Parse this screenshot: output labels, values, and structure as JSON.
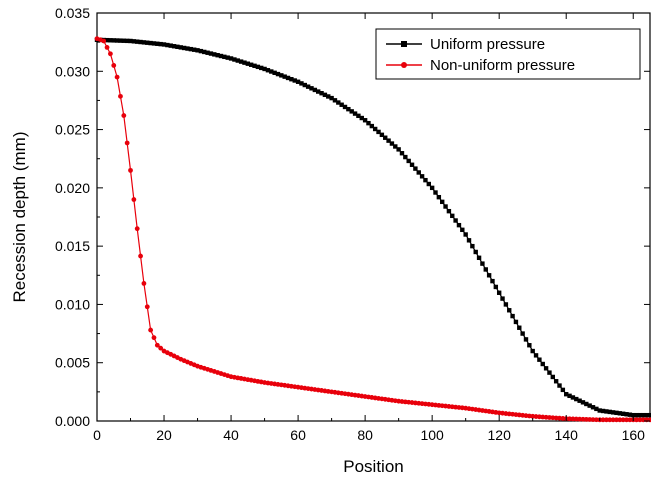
{
  "chart_data": {
    "type": "line",
    "xlabel": "Position",
    "ylabel": "Recession depth (mm)",
    "xlim": [
      0,
      165
    ],
    "ylim": [
      0,
      0.035
    ],
    "x_ticks": [
      0,
      20,
      40,
      60,
      80,
      100,
      120,
      140,
      160
    ],
    "y_ticks": [
      0.0,
      0.005,
      0.01,
      0.015,
      0.02,
      0.025,
      0.03,
      0.035
    ],
    "x_tick_labels": [
      "0",
      "20",
      "40",
      "60",
      "80",
      "100",
      "120",
      "140",
      "160"
    ],
    "y_tick_labels": [
      "0.000",
      "0.005",
      "0.010",
      "0.015",
      "0.020",
      "0.025",
      "0.030",
      "0.035"
    ],
    "grid": false,
    "legend_position": "top-right",
    "series": [
      {
        "name": "Uniform pressure",
        "color": "#000000",
        "marker": "square",
        "x": [
          0,
          10,
          20,
          30,
          40,
          50,
          60,
          70,
          80,
          90,
          100,
          110,
          120,
          130,
          140,
          150,
          160,
          165
        ],
        "y": [
          0.0327,
          0.0326,
          0.0323,
          0.0318,
          0.0311,
          0.0302,
          0.0291,
          0.0277,
          0.0258,
          0.0233,
          0.02,
          0.016,
          0.011,
          0.006,
          0.0023,
          0.0009,
          0.0005,
          0.0005
        ]
      },
      {
        "name": "Non-uniform pressure",
        "color": "#e8000b",
        "marker": "circle",
        "x": [
          0,
          2,
          4,
          6,
          8,
          10,
          12,
          14,
          16,
          18,
          20,
          25,
          30,
          40,
          50,
          60,
          70,
          80,
          90,
          100,
          110,
          120,
          130,
          140,
          150,
          160,
          165
        ],
        "y": [
          0.0328,
          0.0326,
          0.0315,
          0.0295,
          0.0262,
          0.0215,
          0.0165,
          0.0118,
          0.0078,
          0.0065,
          0.006,
          0.0053,
          0.0047,
          0.0038,
          0.0033,
          0.0029,
          0.0025,
          0.0021,
          0.0017,
          0.0014,
          0.0011,
          0.0007,
          0.0004,
          0.0002,
          0.0001,
          0.0001,
          0.0001
        ]
      }
    ]
  }
}
